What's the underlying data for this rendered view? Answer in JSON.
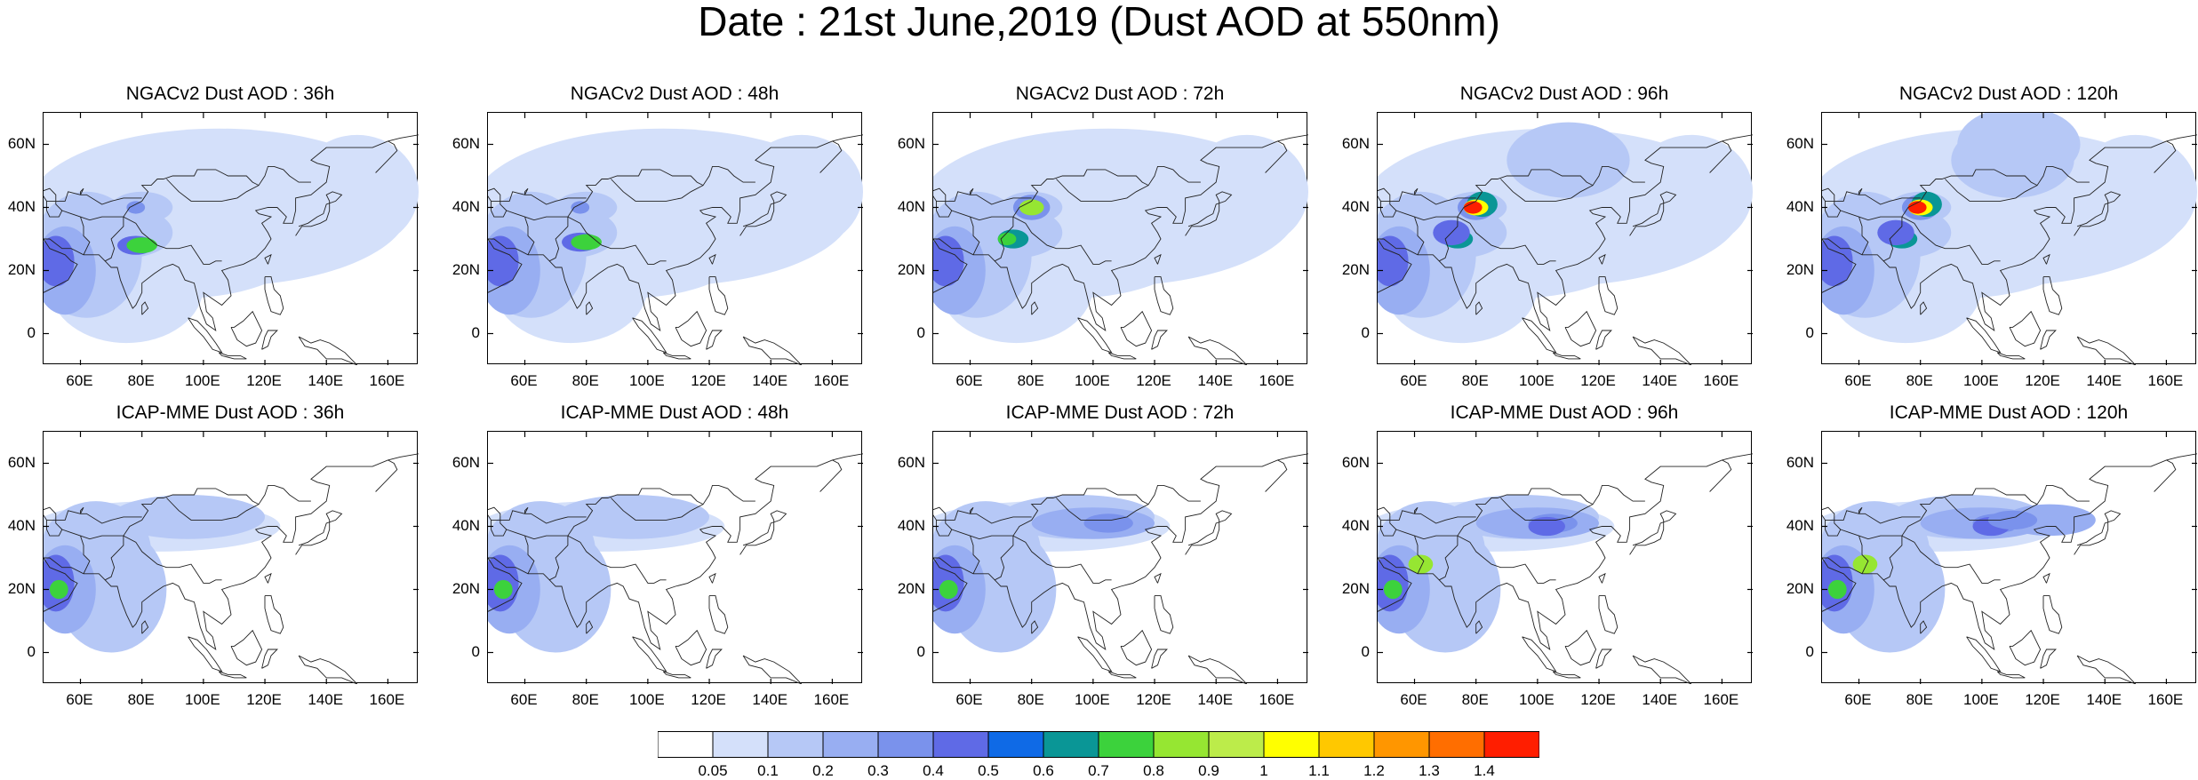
{
  "title": "Date : 21st June,2019 (Dust AOD at 550nm)",
  "panels": [
    {
      "title": "NGACv2 Dust AOD : 36h"
    },
    {
      "title": "NGACv2 Dust AOD : 48h"
    },
    {
      "title": "NGACv2 Dust AOD : 72h"
    },
    {
      "title": "NGACv2 Dust AOD : 96h"
    },
    {
      "title": "NGACv2 Dust AOD : 120h"
    },
    {
      "title": "ICAP-MME Dust AOD : 36h"
    },
    {
      "title": "ICAP-MME Dust AOD : 48h"
    },
    {
      "title": "ICAP-MME Dust AOD : 72h"
    },
    {
      "title": "ICAP-MME Dust AOD : 96h"
    },
    {
      "title": "ICAP-MME Dust AOD : 120h"
    }
  ],
  "lat_ticks": [
    "60N",
    "40N",
    "20N",
    "0"
  ],
  "lon_ticks": [
    "60E",
    "80E",
    "100E",
    "120E",
    "140E",
    "160E"
  ],
  "lat_range": [
    -10,
    70
  ],
  "lon_range": [
    48,
    170
  ],
  "colorbar": {
    "labels": [
      "0.05",
      "0.1",
      "0.2",
      "0.3",
      "0.4",
      "0.5",
      "0.6",
      "0.7",
      "0.8",
      "0.9",
      "1",
      "1.1",
      "1.2",
      "1.3",
      "1.4"
    ],
    "colors": [
      "#ffffff",
      "#d4e0fa",
      "#b6c8f6",
      "#98aef2",
      "#7a92ec",
      "#5f6ae6",
      "#0f6ae6",
      "#0a9696",
      "#3cd23c",
      "#96e632",
      "#bcec4a",
      "#ffff00",
      "#ffc800",
      "#ff9600",
      "#ff6e00",
      "#ff1e00"
    ]
  }
}
